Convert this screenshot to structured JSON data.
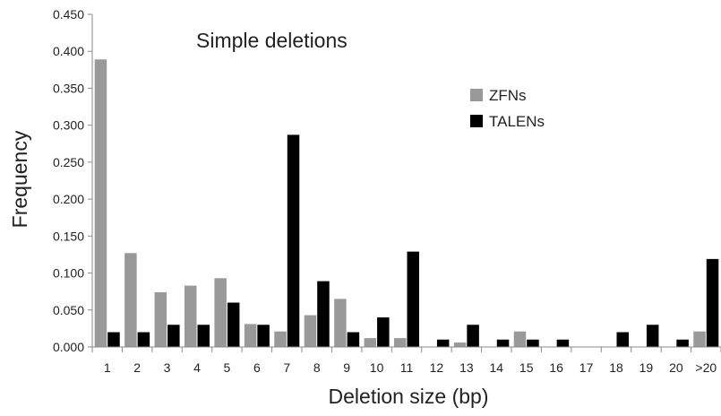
{
  "chart_data": {
    "type": "bar",
    "title": "Simple deletions",
    "xlabel": "Deletion size (bp)",
    "ylabel": "Frequency",
    "ylim": [
      0,
      0.45
    ],
    "yticks": [
      "0.000",
      "0.050",
      "0.100",
      "0.150",
      "0.200",
      "0.250",
      "0.300",
      "0.350",
      "0.400",
      "0.450"
    ],
    "grid": false,
    "legend_position": "upper-right",
    "categories": [
      "1",
      "2",
      "3",
      "4",
      "5",
      "6",
      "7",
      "8",
      "9",
      "10",
      "11",
      "12",
      "13",
      "14",
      "15",
      "16",
      "17",
      "18",
      "19",
      "20",
      ">20"
    ],
    "series": [
      {
        "name": "ZFNs",
        "color": "#999999",
        "values": [
          0.389,
          0.127,
          0.074,
          0.083,
          0.093,
          0.031,
          0.021,
          0.043,
          0.065,
          0.012,
          0.012,
          0.0,
          0.006,
          0.0,
          0.021,
          0.0,
          0.0,
          0.0,
          0.0,
          0.0,
          0.021
        ]
      },
      {
        "name": "TALENs",
        "color": "#000000",
        "values": [
          0.02,
          0.02,
          0.03,
          0.03,
          0.06,
          0.03,
          0.287,
          0.089,
          0.02,
          0.04,
          0.129,
          0.01,
          0.03,
          0.01,
          0.01,
          0.01,
          0.0,
          0.02,
          0.03,
          0.01,
          0.119
        ]
      }
    ]
  }
}
